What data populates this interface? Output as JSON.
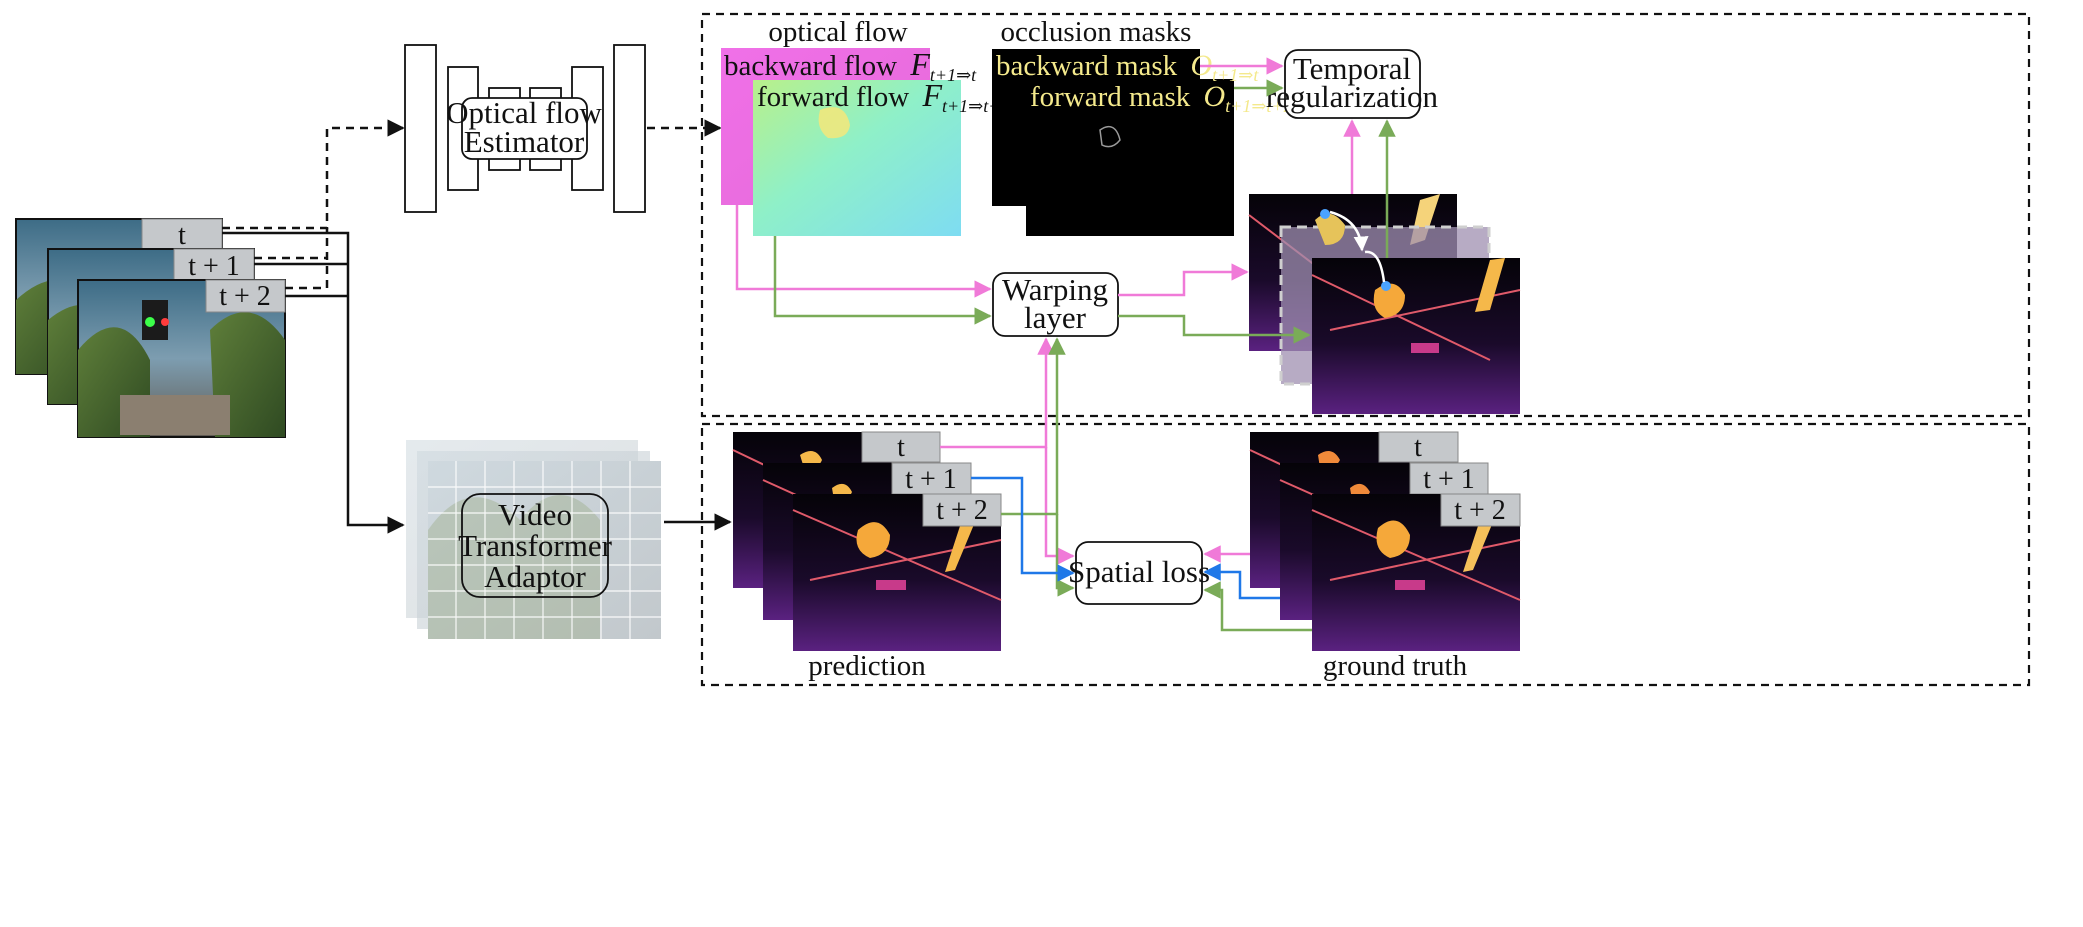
{
  "frame_tags": [
    "t",
    "t + 1",
    "t + 2"
  ],
  "encoder": {
    "line1": "Optical flow",
    "line2": "Estimator"
  },
  "adaptor": {
    "line1": "Video",
    "line2": "Transformer",
    "line3": "Adaptor"
  },
  "optical_flow": {
    "title": "optical flow",
    "backward_text": "backward flow",
    "backward_symbol": "F",
    "backward_sub": "t+1⇒t",
    "forward_text": "forward flow",
    "forward_symbol": "F",
    "forward_sub": "t+1⇒t+2"
  },
  "occlusion": {
    "title": "occlusion masks",
    "backward_text": "backward mask",
    "backward_symbol": "O",
    "backward_sub": "t+1⇒t",
    "forward_text": "forward mask",
    "forward_symbol": "O",
    "forward_sub": "t+1⇒t+2"
  },
  "warping": {
    "line1": "Warping",
    "line2": "layer"
  },
  "temporal": {
    "line1": "Temporal",
    "line2": "regularization"
  },
  "spatial_loss": "Spatial loss",
  "prediction_label": "prediction",
  "ground_truth_label": "ground truth",
  "colors": {
    "pink": "#f07ad8",
    "green": "#7aab58",
    "blue": "#1f78e8",
    "black": "#111111"
  }
}
